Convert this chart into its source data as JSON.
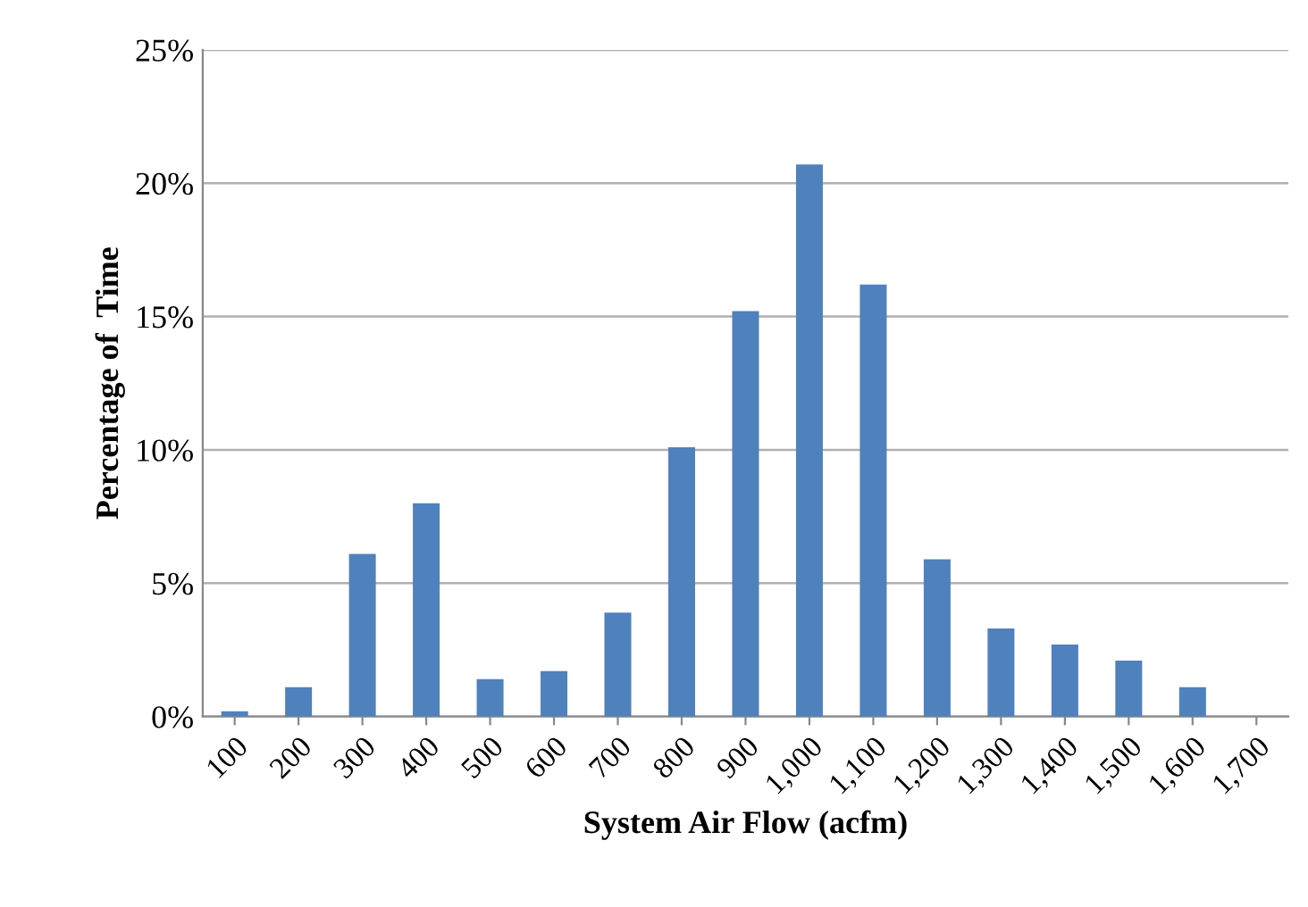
{
  "chart_data": {
    "type": "bar",
    "xlabel": "System Air Flow (acfm)",
    "ylabel": "Percentage of  Time",
    "categories": [
      "100",
      "200",
      "300",
      "400",
      "500",
      "600",
      "700",
      "800",
      "900",
      "1,000",
      "1,100",
      "1,200",
      "1,300",
      "1,400",
      "1,500",
      "1,600",
      "1,700"
    ],
    "values": [
      0.2,
      1.1,
      6.1,
      8.0,
      1.4,
      1.7,
      3.9,
      10.1,
      15.2,
      20.7,
      16.2,
      5.9,
      3.3,
      2.7,
      2.1,
      1.1,
      0
    ],
    "color": "#4f81bd",
    "ylim": [
      0,
      25
    ],
    "yticks": [
      {
        "value": 0,
        "label": "0%"
      },
      {
        "value": 5,
        "label": "5%"
      },
      {
        "value": 10,
        "label": "10%"
      },
      {
        "value": 15,
        "label": "15%"
      },
      {
        "value": 20,
        "label": "20%"
      },
      {
        "value": 25,
        "label": "25%"
      }
    ],
    "grid": "y"
  }
}
